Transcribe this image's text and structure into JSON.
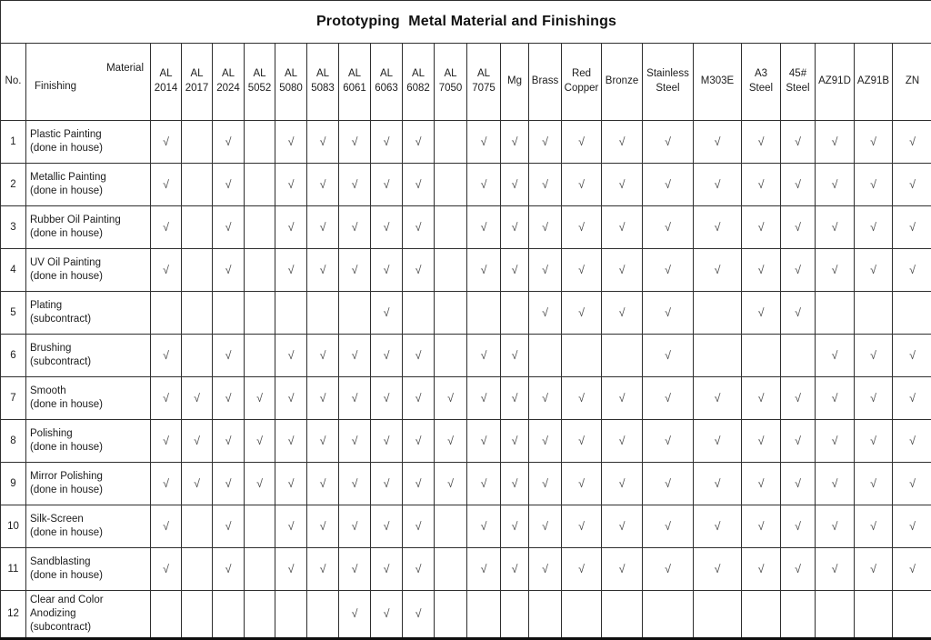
{
  "title": "Prototyping  Metal Material and Finishings",
  "header": {
    "no_label": "No.",
    "material_label": "Material",
    "finishing_label": "Finishing"
  },
  "check_symbol": "√",
  "materials": [
    "AL 2014",
    "AL 2017",
    "AL 2024",
    "AL 5052",
    "AL 5080",
    "AL 5083",
    "AL 6061",
    "AL 6063",
    "AL 6082",
    "AL 7050",
    "AL 7075",
    "Mg",
    "Brass",
    "Red Copper",
    "Bronze",
    "Stainless Steel",
    "M303E",
    "A3 Steel",
    "45# Steel",
    "AZ91D",
    "AZ91B",
    "ZN"
  ],
  "rows": [
    {
      "no": "1",
      "name": "Plastic Painting",
      "note": "(done in house)",
      "checks": [
        1,
        0,
        1,
        0,
        1,
        1,
        1,
        1,
        1,
        0,
        1,
        1,
        1,
        1,
        1,
        1,
        1,
        1,
        1,
        1,
        1,
        1
      ]
    },
    {
      "no": "2",
      "name": "Metallic Painting",
      "note": "(done in house)",
      "checks": [
        1,
        0,
        1,
        0,
        1,
        1,
        1,
        1,
        1,
        0,
        1,
        1,
        1,
        1,
        1,
        1,
        1,
        1,
        1,
        1,
        1,
        1
      ]
    },
    {
      "no": "3",
      "name": "Rubber Oil Painting",
      "note": "(done in house)",
      "checks": [
        1,
        0,
        1,
        0,
        1,
        1,
        1,
        1,
        1,
        0,
        1,
        1,
        1,
        1,
        1,
        1,
        1,
        1,
        1,
        1,
        1,
        1
      ]
    },
    {
      "no": "4",
      "name": "UV Oil Painting",
      "note": "(done in house)",
      "checks": [
        1,
        0,
        1,
        0,
        1,
        1,
        1,
        1,
        1,
        0,
        1,
        1,
        1,
        1,
        1,
        1,
        1,
        1,
        1,
        1,
        1,
        1
      ]
    },
    {
      "no": "5",
      "name": "Plating",
      "note": "(subcontract)",
      "checks": [
        0,
        0,
        0,
        0,
        0,
        0,
        0,
        1,
        0,
        0,
        0,
        0,
        1,
        1,
        1,
        1,
        0,
        1,
        1,
        0,
        0,
        0
      ]
    },
    {
      "no": "6",
      "name": "Brushing",
      "note": "(subcontract)",
      "checks": [
        1,
        0,
        1,
        0,
        1,
        1,
        1,
        1,
        1,
        0,
        1,
        1,
        0,
        0,
        0,
        1,
        0,
        0,
        0,
        1,
        1,
        1
      ]
    },
    {
      "no": "7",
      "name": "Smooth",
      "note": "(done in house)",
      "checks": [
        1,
        1,
        1,
        1,
        1,
        1,
        1,
        1,
        1,
        1,
        1,
        1,
        1,
        1,
        1,
        1,
        1,
        1,
        1,
        1,
        1,
        1
      ]
    },
    {
      "no": "8",
      "name": "Polishing",
      "note": "(done in house)",
      "checks": [
        1,
        1,
        1,
        1,
        1,
        1,
        1,
        1,
        1,
        1,
        1,
        1,
        1,
        1,
        1,
        1,
        1,
        1,
        1,
        1,
        1,
        1
      ]
    },
    {
      "no": "9",
      "name": "Mirror Polishing",
      "note": "(done in house)",
      "checks": [
        1,
        1,
        1,
        1,
        1,
        1,
        1,
        1,
        1,
        1,
        1,
        1,
        1,
        1,
        1,
        1,
        1,
        1,
        1,
        1,
        1,
        1
      ]
    },
    {
      "no": "10",
      "name": "Silk-Screen",
      "note": "(done in house)",
      "checks": [
        1,
        0,
        1,
        0,
        1,
        1,
        1,
        1,
        1,
        0,
        1,
        1,
        1,
        1,
        1,
        1,
        1,
        1,
        1,
        1,
        1,
        1
      ]
    },
    {
      "no": "11",
      "name": "Sandblasting",
      "note": "(done in house)",
      "checks": [
        1,
        0,
        1,
        0,
        1,
        1,
        1,
        1,
        1,
        0,
        1,
        1,
        1,
        1,
        1,
        1,
        1,
        1,
        1,
        1,
        1,
        1
      ]
    },
    {
      "no": "12",
      "name": "Clear and Color Anodizing",
      "note": "(subcontract)",
      "checks": [
        0,
        0,
        0,
        0,
        0,
        0,
        1,
        1,
        1,
        0,
        0,
        0,
        0,
        0,
        0,
        0,
        0,
        0,
        0,
        0,
        0,
        0
      ]
    }
  ]
}
